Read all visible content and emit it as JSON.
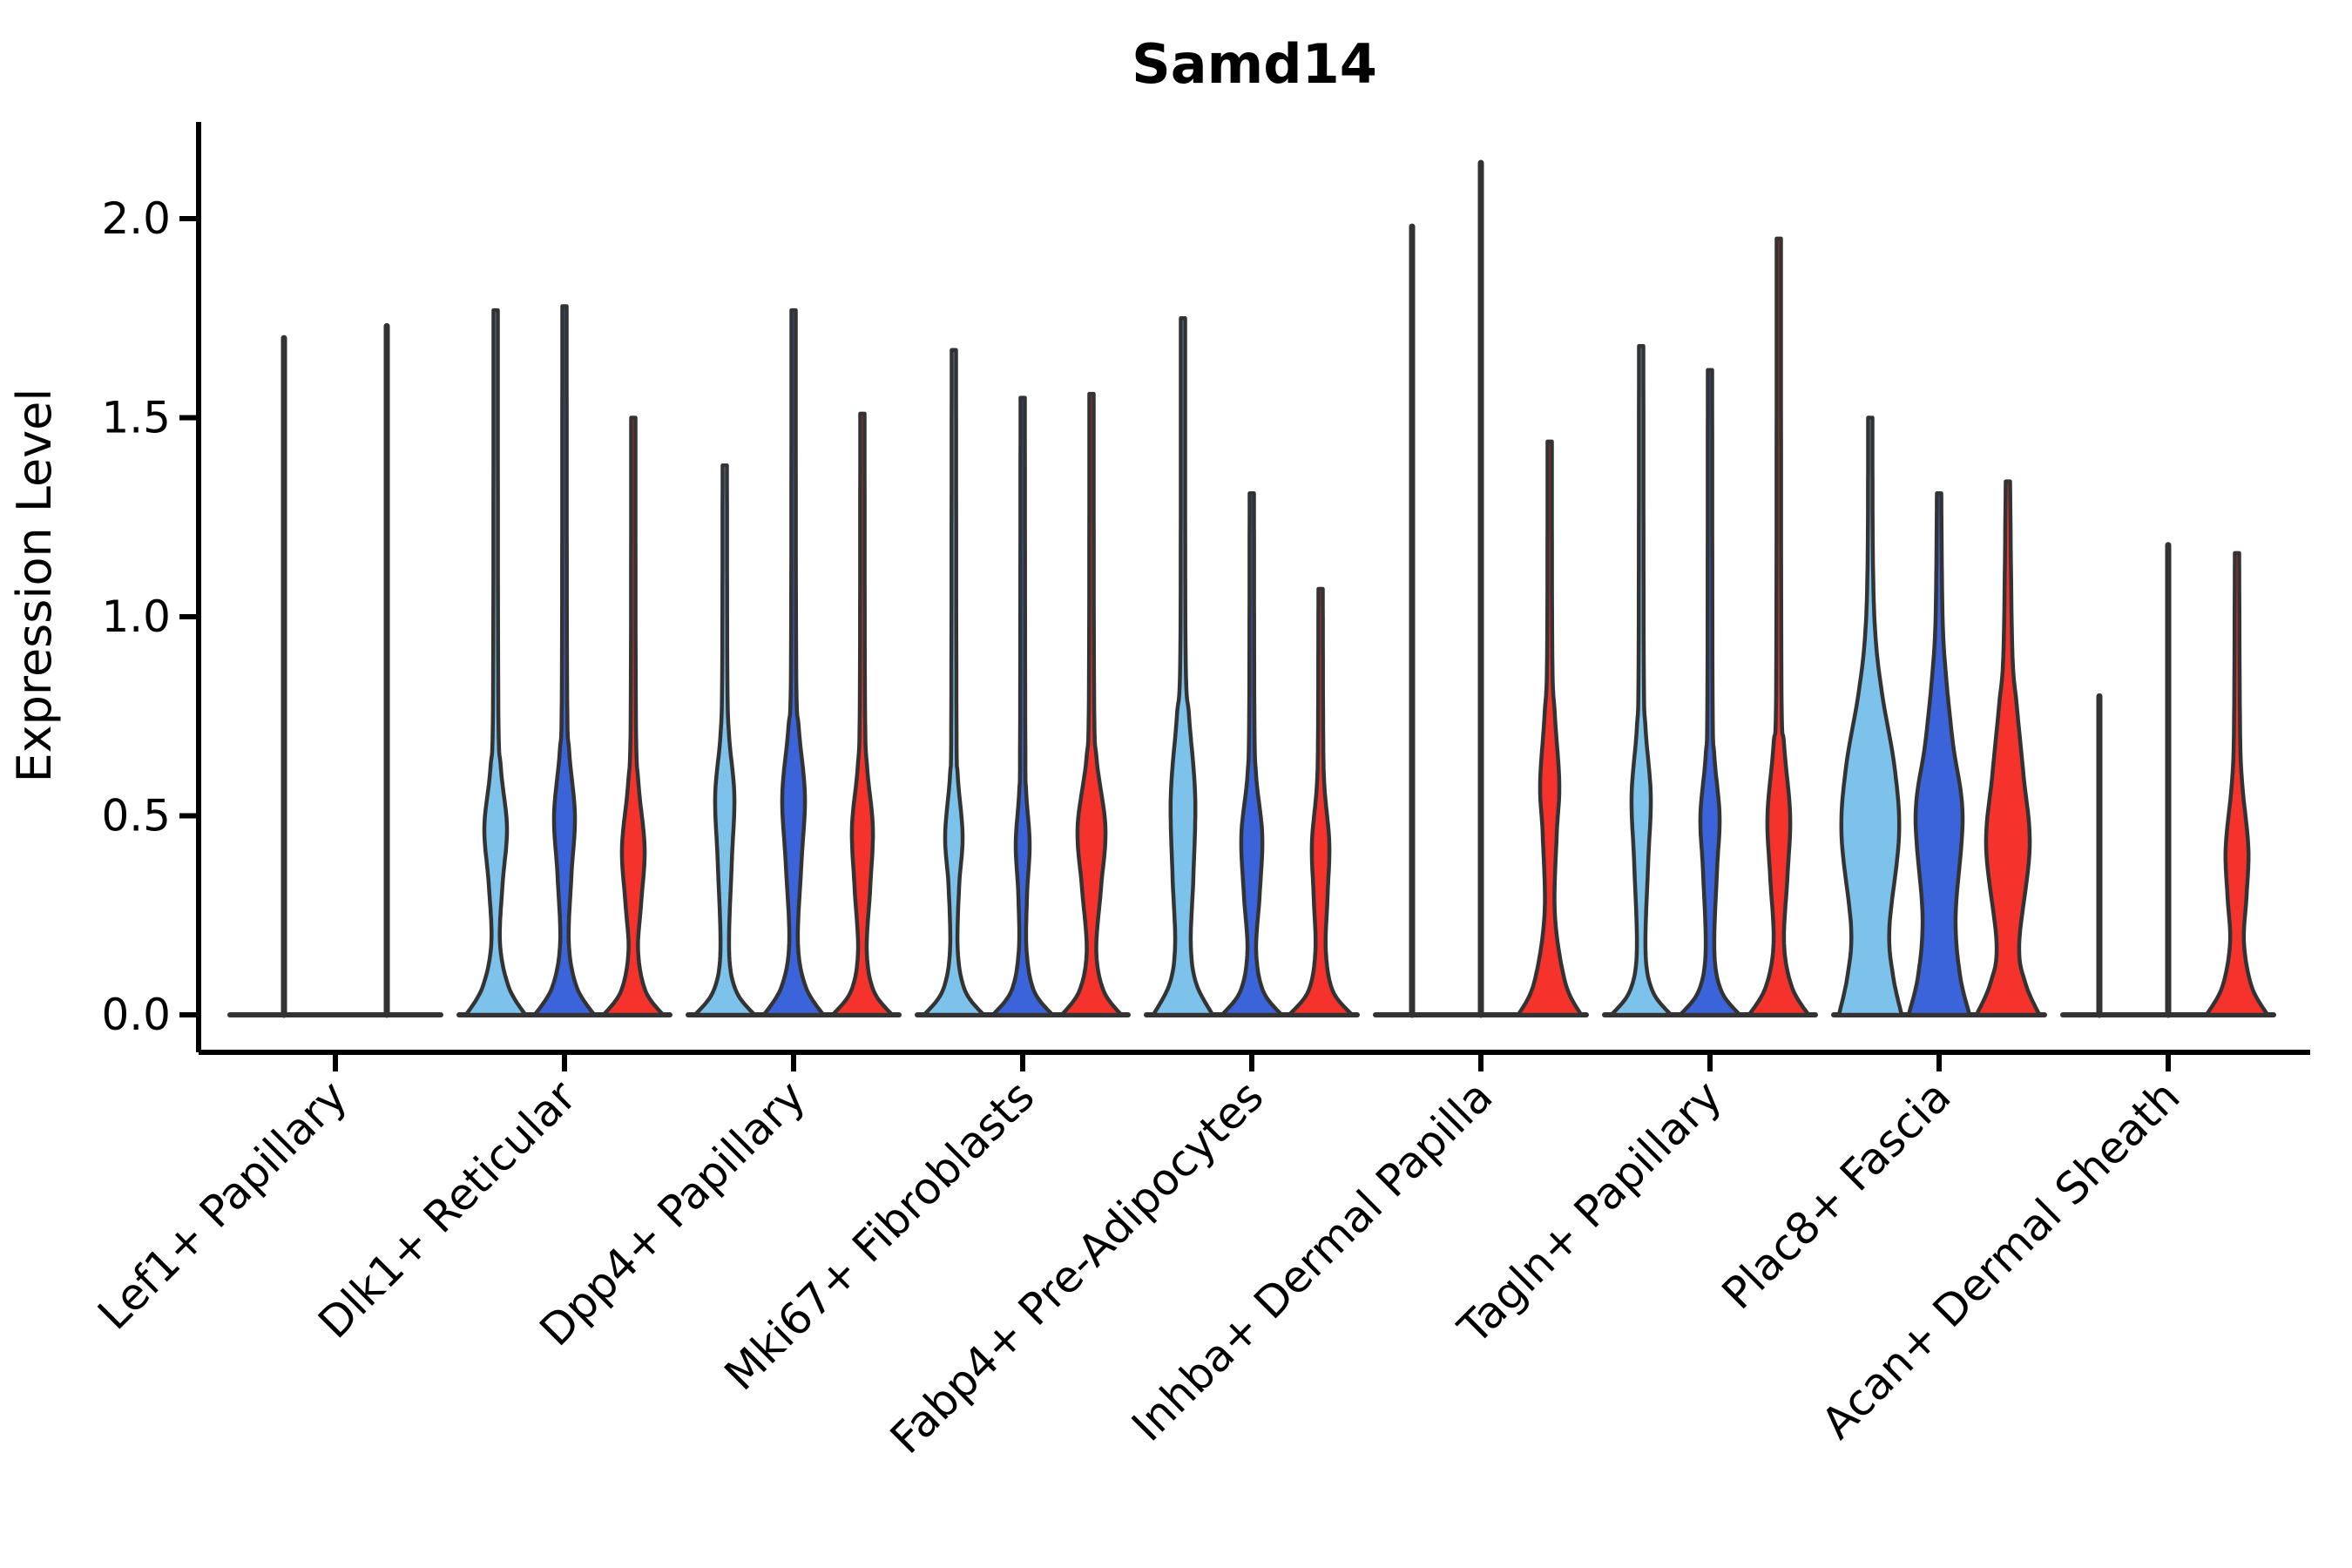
{
  "figure": {
    "title": "Samd14",
    "background": "#ffffff"
  },
  "chart_data": {
    "type": "violin",
    "title": "Samd14",
    "ylabel": "Expression Level",
    "xlabel": "",
    "ylim": [
      -0.08,
      2.25
    ],
    "yticks": [
      "0.0",
      "0.5",
      "1.0",
      "1.5",
      "2.0"
    ],
    "ytick_values": [
      0.0,
      0.5,
      1.0,
      1.5,
      2.0
    ],
    "grid": false,
    "legend": "none",
    "axis_color": "#000000",
    "violin_edge_color": "#333333",
    "series": [
      {
        "key": "light-blue",
        "color": "#7DC2EA"
      },
      {
        "key": "dark-blue",
        "color": "#3B63DA"
      },
      {
        "key": "red",
        "color": "#F5322B"
      }
    ],
    "categories": [
      "Lef1+ Papillary",
      "Dlk1+ Reticular",
      "Dpp4+ Papillary",
      "Mki67+ Fibroblasts",
      "Fabp4+ Pre-Adipocytes",
      "Inhba+ Dermal Papilla",
      "Tagln+ Papillary",
      "Plac8+ Fascia",
      "Acan+ Dermal Sheath"
    ],
    "groups": [
      {
        "category": "Lef1+ Papillary",
        "violins": [
          {
            "series": "light-blue",
            "kind": "line",
            "max": 1.7,
            "offset": -59
          },
          {
            "series": "dark-blue",
            "kind": "line",
            "max": 1.73,
            "offset": 59
          }
        ]
      },
      {
        "category": "Dlk1+ Reticular",
        "violins": [
          {
            "series": "light-blue",
            "kind": "violin",
            "max": 1.77,
            "offset": -79,
            "profile": [
              [
                0,
                34
              ],
              [
                0.07,
                15
              ],
              [
                0.18,
                5
              ],
              [
                0.33,
                8
              ],
              [
                0.47,
                13
              ],
              [
                0.62,
                6
              ],
              [
                0.8,
                3
              ],
              [
                1.77,
                2.5
              ]
            ]
          },
          {
            "series": "dark-blue",
            "kind": "violin",
            "max": 1.78,
            "offset": 0,
            "profile": [
              [
                0,
                34
              ],
              [
                0.07,
                14
              ],
              [
                0.18,
                5
              ],
              [
                0.35,
                8
              ],
              [
                0.5,
                12
              ],
              [
                0.66,
                5.5
              ],
              [
                0.83,
                3
              ],
              [
                1.78,
                2.5
              ]
            ]
          },
          {
            "series": "red",
            "kind": "violin",
            "max": 1.5,
            "offset": 79,
            "profile": [
              [
                0,
                34
              ],
              [
                0.06,
                14
              ],
              [
                0.16,
                5.5
              ],
              [
                0.28,
                9
              ],
              [
                0.42,
                13
              ],
              [
                0.58,
                6
              ],
              [
                0.75,
                3
              ],
              [
                1.5,
                2.5
              ]
            ]
          }
        ]
      },
      {
        "category": "Dpp4+ Papillary",
        "violins": [
          {
            "series": "light-blue",
            "kind": "violin",
            "max": 1.38,
            "offset": -79,
            "profile": [
              [
                0,
                34
              ],
              [
                0.06,
                13
              ],
              [
                0.16,
                5
              ],
              [
                0.38,
                8
              ],
              [
                0.55,
                11
              ],
              [
                0.7,
                5
              ],
              [
                0.85,
                3
              ],
              [
                1.38,
                2.5
              ]
            ]
          },
          {
            "series": "dark-blue",
            "kind": "violin",
            "max": 1.77,
            "offset": 0,
            "profile": [
              [
                0,
                34
              ],
              [
                0.07,
                14
              ],
              [
                0.18,
                5
              ],
              [
                0.38,
                9
              ],
              [
                0.55,
                13
              ],
              [
                0.72,
                6
              ],
              [
                0.88,
                3
              ],
              [
                1.77,
                2.5
              ]
            ]
          },
          {
            "series": "red",
            "kind": "violin",
            "max": 1.51,
            "offset": 79,
            "profile": [
              [
                0,
                34
              ],
              [
                0.06,
                13
              ],
              [
                0.16,
                5
              ],
              [
                0.32,
                9
              ],
              [
                0.47,
                12
              ],
              [
                0.62,
                5.5
              ],
              [
                0.78,
                3
              ],
              [
                1.51,
                2.5
              ]
            ]
          }
        ]
      },
      {
        "category": "Mki67+ Fibroblasts",
        "violins": [
          {
            "series": "light-blue",
            "kind": "violin",
            "max": 1.67,
            "offset": -79,
            "profile": [
              [
                0,
                34
              ],
              [
                0.06,
                13
              ],
              [
                0.16,
                4.5
              ],
              [
                0.32,
                6
              ],
              [
                0.45,
                10
              ],
              [
                0.6,
                4.5
              ],
              [
                0.75,
                3
              ],
              [
                1.67,
                2.5
              ]
            ]
          },
          {
            "series": "dark-blue",
            "kind": "violin",
            "max": 1.55,
            "offset": 0,
            "profile": [
              [
                0,
                34
              ],
              [
                0.06,
                13
              ],
              [
                0.16,
                4.5
              ],
              [
                0.3,
                5
              ],
              [
                0.43,
                8
              ],
              [
                0.56,
                4
              ],
              [
                0.7,
                3
              ],
              [
                1.55,
                2.5
              ]
            ]
          },
          {
            "series": "red",
            "kind": "violin",
            "max": 1.56,
            "offset": 79,
            "profile": [
              [
                0,
                34
              ],
              [
                0.06,
                14
              ],
              [
                0.16,
                5.5
              ],
              [
                0.32,
                11
              ],
              [
                0.47,
                16
              ],
              [
                0.64,
                6
              ],
              [
                0.8,
                3
              ],
              [
                1.56,
                2.5
              ]
            ]
          }
        ]
      },
      {
        "category": "Fabp4+ Pre-Adipocytes",
        "violins": [
          {
            "series": "light-blue",
            "kind": "violin",
            "max": 1.75,
            "offset": -79,
            "profile": [
              [
                0,
                34
              ],
              [
                0.08,
                15
              ],
              [
                0.18,
                9
              ],
              [
                0.35,
                12
              ],
              [
                0.55,
                14
              ],
              [
                0.75,
                7
              ],
              [
                0.92,
                3
              ],
              [
                1.75,
                2.5
              ]
            ]
          },
          {
            "series": "dark-blue",
            "kind": "violin",
            "max": 1.31,
            "offset": 0,
            "profile": [
              [
                0,
                34
              ],
              [
                0.06,
                13
              ],
              [
                0.16,
                5
              ],
              [
                0.3,
                9
              ],
              [
                0.45,
                12
              ],
              [
                0.6,
                5
              ],
              [
                0.75,
                3
              ],
              [
                1.31,
                2.5
              ]
            ]
          },
          {
            "series": "red",
            "kind": "violin",
            "max": 1.07,
            "offset": 79,
            "profile": [
              [
                0,
                36
              ],
              [
                0.06,
                14
              ],
              [
                0.16,
                6
              ],
              [
                0.3,
                8
              ],
              [
                0.43,
                10
              ],
              [
                0.57,
                4.5
              ],
              [
                0.7,
                3
              ],
              [
                1.07,
                2.5
              ]
            ]
          }
        ]
      },
      {
        "category": "Inhba+ Dermal Papilla",
        "violins": [
          {
            "series": "light-blue",
            "kind": "line",
            "max": 1.98,
            "offset": -79
          },
          {
            "series": "dark-blue",
            "kind": "line",
            "max": 2.14,
            "offset": 0
          },
          {
            "series": "red",
            "kind": "violin",
            "max": 1.44,
            "offset": 79,
            "profile": [
              [
                0,
                36
              ],
              [
                0.08,
                18
              ],
              [
                0.25,
                6
              ],
              [
                0.45,
                8
              ],
              [
                0.58,
                11
              ],
              [
                0.75,
                6
              ],
              [
                0.9,
                3
              ],
              [
                1.44,
                2.5
              ]
            ]
          }
        ]
      },
      {
        "category": "Tagln+ Papillary",
        "violins": [
          {
            "series": "light-blue",
            "kind": "violin",
            "max": 1.68,
            "offset": -79,
            "profile": [
              [
                0,
                34
              ],
              [
                0.06,
                13
              ],
              [
                0.16,
                5
              ],
              [
                0.38,
                8
              ],
              [
                0.55,
                11
              ],
              [
                0.72,
                5
              ],
              [
                0.88,
                3
              ],
              [
                1.68,
                2.5
              ]
            ]
          },
          {
            "series": "dark-blue",
            "kind": "violin",
            "max": 1.62,
            "offset": 0,
            "profile": [
              [
                0,
                34
              ],
              [
                0.06,
                13
              ],
              [
                0.16,
                5
              ],
              [
                0.36,
                8
              ],
              [
                0.5,
                11
              ],
              [
                0.65,
                5
              ],
              [
                0.8,
                3
              ],
              [
                1.62,
                2.5
              ]
            ]
          },
          {
            "series": "red",
            "kind": "violin",
            "max": 1.95,
            "offset": 79,
            "profile": [
              [
                0,
                34
              ],
              [
                0.07,
                15
              ],
              [
                0.18,
                6
              ],
              [
                0.35,
                10
              ],
              [
                0.5,
                13
              ],
              [
                0.68,
                6
              ],
              [
                0.85,
                3
              ],
              [
                1.95,
                2.5
              ]
            ]
          }
        ]
      },
      {
        "category": "Plac8+ Fascia",
        "violins": [
          {
            "series": "light-blue",
            "kind": "violin",
            "max": 1.5,
            "offset": -79,
            "profile": [
              [
                0,
                36
              ],
              [
                0.1,
                26
              ],
              [
                0.22,
                22
              ],
              [
                0.45,
                33
              ],
              [
                0.62,
                28
              ],
              [
                0.8,
                14
              ],
              [
                0.95,
                6
              ],
              [
                1.15,
                3
              ],
              [
                1.5,
                2.5
              ]
            ]
          },
          {
            "series": "dark-blue",
            "kind": "violin",
            "max": 1.31,
            "offset": 0,
            "profile": [
              [
                0,
                35
              ],
              [
                0.1,
                24
              ],
              [
                0.25,
                19
              ],
              [
                0.5,
                27
              ],
              [
                0.68,
                16
              ],
              [
                0.85,
                8
              ],
              [
                1.0,
                4
              ],
              [
                1.31,
                2.5
              ]
            ]
          },
          {
            "series": "red",
            "kind": "violin",
            "max": 1.34,
            "offset": 79,
            "profile": [
              [
                0,
                36
              ],
              [
                0.08,
                20
              ],
              [
                0.18,
                13
              ],
              [
                0.42,
                25
              ],
              [
                0.6,
                18
              ],
              [
                0.78,
                10
              ],
              [
                0.92,
                5
              ],
              [
                1.34,
                2.5
              ]
            ]
          }
        ]
      },
      {
        "category": "Acan+ Dermal Sheath",
        "violins": [
          {
            "series": "light-blue",
            "kind": "line",
            "max": 0.8,
            "offset": -79
          },
          {
            "series": "dark-blue",
            "kind": "line",
            "max": 1.18,
            "offset": 0
          },
          {
            "series": "red",
            "kind": "violin",
            "max": 1.16,
            "offset": 79,
            "profile": [
              [
                0,
                35
              ],
              [
                0.07,
                17
              ],
              [
                0.18,
                8
              ],
              [
                0.3,
                11
              ],
              [
                0.42,
                13
              ],
              [
                0.58,
                6
              ],
              [
                0.72,
                3.5
              ],
              [
                1.16,
                2.5
              ]
            ]
          }
        ]
      }
    ]
  }
}
